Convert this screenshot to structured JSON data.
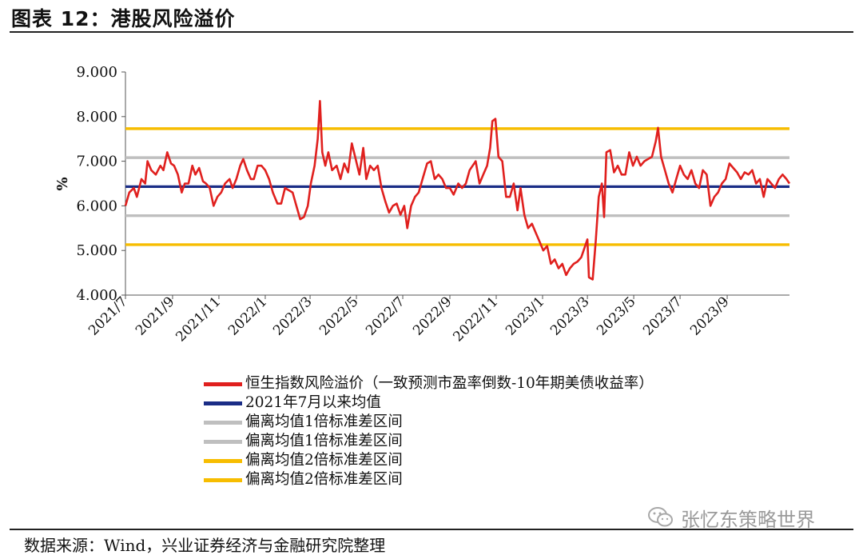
{
  "figure_title": "图表 12：港股风险溢价",
  "source_text": "数据来源：Wind，兴业证券经济与金融研究院整理",
  "watermark": {
    "text": "张忆东策略世界",
    "icon": "wechat-icon"
  },
  "colors": {
    "red": "#e0201e",
    "navy": "#1a2d86",
    "gray": "#bfbfbf",
    "gold": "#f7bd00"
  },
  "chart_data": {
    "type": "line",
    "ylabel": "%",
    "ylim": [
      4,
      9
    ],
    "yticks": [
      "9.000",
      "8.000",
      "7.000",
      "6.000",
      "5.000",
      "4.000"
    ],
    "xticks": [
      "2021/7",
      "2021/9",
      "2021/11",
      "2022/1",
      "2022/3",
      "2022/5",
      "2022/7",
      "2022/9",
      "2022/11",
      "2023/1",
      "2023/3",
      "2023/5",
      "2023/7",
      "2023/9"
    ],
    "x_range": [
      "2021-07-01",
      "2023-11-22"
    ],
    "series": [
      {
        "name": "恒生指数风险溢价（一致预测市盈率倒数-10年期美债收益率）",
        "color": "#e0201e",
        "points": [
          [
            "2021-07-01",
            6.0
          ],
          [
            "2021-07-06",
            6.3
          ],
          [
            "2021-07-12",
            6.4
          ],
          [
            "2021-07-16",
            6.2
          ],
          [
            "2021-07-22",
            6.6
          ],
          [
            "2021-07-27",
            6.5
          ],
          [
            "2021-07-30",
            7.0
          ],
          [
            "2021-08-04",
            6.8
          ],
          [
            "2021-08-10",
            6.7
          ],
          [
            "2021-08-16",
            6.9
          ],
          [
            "2021-08-20",
            6.8
          ],
          [
            "2021-08-25",
            7.2
          ],
          [
            "2021-08-30",
            6.95
          ],
          [
            "2021-09-03",
            6.9
          ],
          [
            "2021-09-08",
            6.7
          ],
          [
            "2021-09-13",
            6.3
          ],
          [
            "2021-09-17",
            6.5
          ],
          [
            "2021-09-22",
            6.5
          ],
          [
            "2021-09-27",
            6.9
          ],
          [
            "2021-10-01",
            6.7
          ],
          [
            "2021-10-06",
            6.85
          ],
          [
            "2021-10-11",
            6.55
          ],
          [
            "2021-10-15",
            6.5
          ],
          [
            "2021-10-20",
            6.4
          ],
          [
            "2021-10-25",
            6.0
          ],
          [
            "2021-10-30",
            6.2
          ],
          [
            "2021-11-04",
            6.3
          ],
          [
            "2021-11-09",
            6.5
          ],
          [
            "2021-11-15",
            6.6
          ],
          [
            "2021-11-19",
            6.4
          ],
          [
            "2021-11-24",
            6.6
          ],
          [
            "2021-11-29",
            6.9
          ],
          [
            "2021-12-03",
            7.05
          ],
          [
            "2021-12-08",
            6.8
          ],
          [
            "2021-12-13",
            6.6
          ],
          [
            "2021-12-17",
            6.6
          ],
          [
            "2021-12-22",
            6.9
          ],
          [
            "2021-12-27",
            6.9
          ],
          [
            "2022-01-01",
            6.8
          ],
          [
            "2022-01-06",
            6.6
          ],
          [
            "2022-01-11",
            6.3
          ],
          [
            "2022-01-17",
            6.05
          ],
          [
            "2022-01-22",
            6.05
          ],
          [
            "2022-01-27",
            6.4
          ],
          [
            "2022-02-01",
            6.35
          ],
          [
            "2022-02-06",
            6.3
          ],
          [
            "2022-02-11",
            6.0
          ],
          [
            "2022-02-16",
            5.7
          ],
          [
            "2022-02-21",
            5.75
          ],
          [
            "2022-02-26",
            6.0
          ],
          [
            "2022-03-02",
            6.5
          ],
          [
            "2022-03-07",
            6.9
          ],
          [
            "2022-03-11",
            7.5
          ],
          [
            "2022-03-14",
            8.35
          ],
          [
            "2022-03-17",
            7.2
          ],
          [
            "2022-03-21",
            6.9
          ],
          [
            "2022-03-25",
            7.2
          ],
          [
            "2022-03-30",
            6.8
          ],
          [
            "2022-04-05",
            6.9
          ],
          [
            "2022-04-10",
            6.6
          ],
          [
            "2022-04-15",
            6.95
          ],
          [
            "2022-04-20",
            6.75
          ],
          [
            "2022-04-25",
            7.4
          ],
          [
            "2022-04-30",
            7.05
          ],
          [
            "2022-05-05",
            6.7
          ],
          [
            "2022-05-10",
            7.3
          ],
          [
            "2022-05-14",
            6.6
          ],
          [
            "2022-05-19",
            6.9
          ],
          [
            "2022-05-24",
            6.8
          ],
          [
            "2022-05-29",
            6.9
          ],
          [
            "2022-06-03",
            6.4
          ],
          [
            "2022-06-08",
            6.1
          ],
          [
            "2022-06-13",
            5.85
          ],
          [
            "2022-06-18",
            6.0
          ],
          [
            "2022-06-23",
            6.05
          ],
          [
            "2022-06-28",
            5.8
          ],
          [
            "2022-07-03",
            6.0
          ],
          [
            "2022-07-07",
            5.5
          ],
          [
            "2022-07-12",
            6.0
          ],
          [
            "2022-07-17",
            6.2
          ],
          [
            "2022-07-22",
            6.3
          ],
          [
            "2022-07-27",
            6.6
          ],
          [
            "2022-08-02",
            6.95
          ],
          [
            "2022-08-07",
            7.0
          ],
          [
            "2022-08-12",
            6.6
          ],
          [
            "2022-08-17",
            6.7
          ],
          [
            "2022-08-22",
            6.6
          ],
          [
            "2022-08-27",
            6.4
          ],
          [
            "2022-09-01",
            6.4
          ],
          [
            "2022-09-06",
            6.25
          ],
          [
            "2022-09-12",
            6.5
          ],
          [
            "2022-09-17",
            6.4
          ],
          [
            "2022-09-22",
            6.5
          ],
          [
            "2022-09-27",
            6.8
          ],
          [
            "2022-10-01",
            6.9
          ],
          [
            "2022-10-05",
            7.0
          ],
          [
            "2022-10-10",
            6.5
          ],
          [
            "2022-10-15",
            6.7
          ],
          [
            "2022-10-20",
            6.9
          ],
          [
            "2022-10-24",
            7.3
          ],
          [
            "2022-10-27",
            7.9
          ],
          [
            "2022-10-31",
            7.95
          ],
          [
            "2022-11-04",
            7.1
          ],
          [
            "2022-11-09",
            7.0
          ],
          [
            "2022-11-14",
            6.2
          ],
          [
            "2022-11-19",
            6.2
          ],
          [
            "2022-11-24",
            6.5
          ],
          [
            "2022-11-29",
            5.9
          ],
          [
            "2022-12-03",
            6.4
          ],
          [
            "2022-12-08",
            5.8
          ],
          [
            "2022-12-13",
            5.5
          ],
          [
            "2022-12-18",
            5.6
          ],
          [
            "2022-12-23",
            5.4
          ],
          [
            "2022-12-28",
            5.2
          ],
          [
            "2023-01-02",
            5.0
          ],
          [
            "2023-01-07",
            5.1
          ],
          [
            "2023-01-12",
            4.7
          ],
          [
            "2023-01-17",
            4.8
          ],
          [
            "2023-01-22",
            4.6
          ],
          [
            "2023-01-27",
            4.7
          ],
          [
            "2023-02-01",
            4.45
          ],
          [
            "2023-02-06",
            4.6
          ],
          [
            "2023-02-11",
            4.7
          ],
          [
            "2023-02-16",
            4.75
          ],
          [
            "2023-02-21",
            4.85
          ],
          [
            "2023-02-25",
            5.05
          ],
          [
            "2023-03-01",
            5.25
          ],
          [
            "2023-03-03",
            4.4
          ],
          [
            "2023-03-08",
            4.35
          ],
          [
            "2023-03-12",
            5.2
          ],
          [
            "2023-03-16",
            6.2
          ],
          [
            "2023-03-20",
            6.5
          ],
          [
            "2023-03-23",
            5.75
          ],
          [
            "2023-03-26",
            7.2
          ],
          [
            "2023-03-31",
            7.25
          ],
          [
            "2023-04-05",
            6.75
          ],
          [
            "2023-04-10",
            6.9
          ],
          [
            "2023-04-15",
            6.7
          ],
          [
            "2023-04-20",
            6.7
          ],
          [
            "2023-04-25",
            7.2
          ],
          [
            "2023-04-30",
            6.9
          ],
          [
            "2023-05-05",
            7.1
          ],
          [
            "2023-05-10",
            6.9
          ],
          [
            "2023-05-15",
            7.0
          ],
          [
            "2023-05-20",
            7.05
          ],
          [
            "2023-05-25",
            7.1
          ],
          [
            "2023-05-30",
            7.45
          ],
          [
            "2023-06-02",
            7.75
          ],
          [
            "2023-06-06",
            7.1
          ],
          [
            "2023-06-11",
            6.8
          ],
          [
            "2023-06-16",
            6.5
          ],
          [
            "2023-06-21",
            6.3
          ],
          [
            "2023-06-26",
            6.6
          ],
          [
            "2023-07-01",
            6.9
          ],
          [
            "2023-07-06",
            6.7
          ],
          [
            "2023-07-11",
            6.6
          ],
          [
            "2023-07-16",
            6.8
          ],
          [
            "2023-07-21",
            6.5
          ],
          [
            "2023-07-26",
            6.4
          ],
          [
            "2023-07-31",
            6.8
          ],
          [
            "2023-08-05",
            6.7
          ],
          [
            "2023-08-10",
            6.0
          ],
          [
            "2023-08-15",
            6.2
          ],
          [
            "2023-08-20",
            6.3
          ],
          [
            "2023-08-25",
            6.5
          ],
          [
            "2023-08-30",
            6.6
          ],
          [
            "2023-09-04",
            6.95
          ],
          [
            "2023-09-09",
            6.85
          ],
          [
            "2023-09-14",
            6.75
          ],
          [
            "2023-09-19",
            6.6
          ],
          [
            "2023-09-24",
            6.75
          ],
          [
            "2023-09-29",
            6.7
          ],
          [
            "2023-10-04",
            6.8
          ],
          [
            "2023-10-09",
            6.5
          ],
          [
            "2023-10-14",
            6.6
          ],
          [
            "2023-10-19",
            6.2
          ],
          [
            "2023-10-24",
            6.6
          ],
          [
            "2023-10-29",
            6.5
          ],
          [
            "2023-11-03",
            6.4
          ],
          [
            "2023-11-08",
            6.6
          ],
          [
            "2023-11-13",
            6.7
          ],
          [
            "2023-11-18",
            6.6
          ],
          [
            "2023-11-22",
            6.5
          ]
        ]
      },
      {
        "name": "2021年7月以来均值",
        "color": "#1a2d86",
        "constant": 6.43
      },
      {
        "name": "偏离均值1倍标准差区间",
        "color": "#bfbfbf",
        "constant": 7.08
      },
      {
        "name": "偏离均值1倍标准差区间",
        "color": "#bfbfbf",
        "constant": 5.78
      },
      {
        "name": "偏离均值2倍标准差区间",
        "color": "#f7bd00",
        "constant": 7.73
      },
      {
        "name": "偏离均值2倍标准差区间",
        "color": "#f7bd00",
        "constant": 5.13
      }
    ],
    "grid": false,
    "legend": "bottom"
  }
}
